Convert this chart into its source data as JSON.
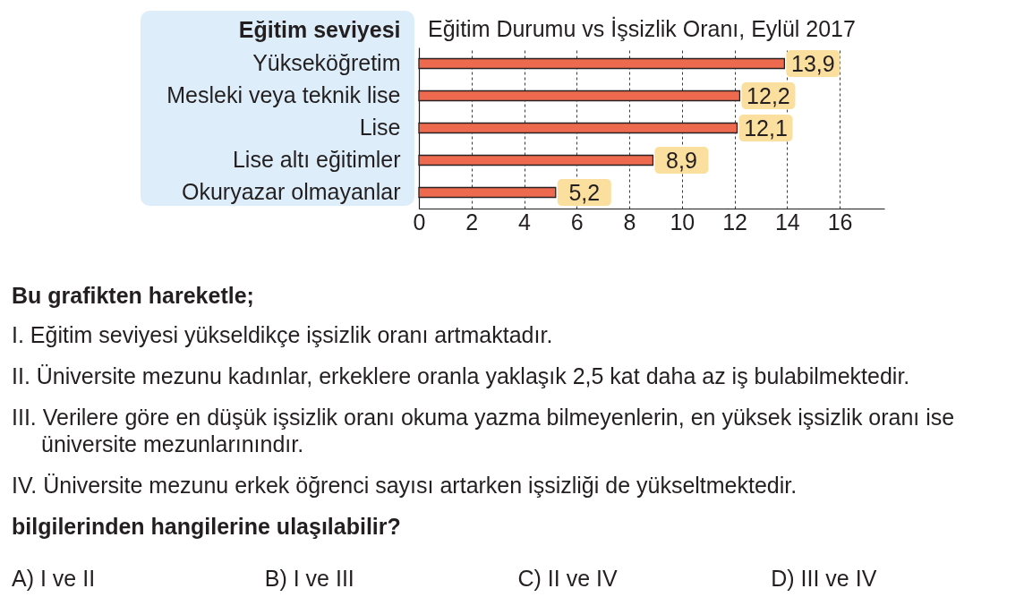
{
  "chart_data": {
    "type": "bar",
    "orientation": "horizontal",
    "title": "Eğitim Durumu vs İşsizlik Oranı, Eylül 2017",
    "ylabel": "Eğitim seviyesi",
    "categories": [
      "Yükseköğretim",
      "Mesleki veya teknik lise",
      "Lise",
      "Lise altı eğitimler",
      "Okuryazar olmayanlar"
    ],
    "values": [
      13.9,
      12.2,
      12.1,
      8.9,
      5.2
    ],
    "color": "#ee6a4f",
    "value_labels": [
      "13,9",
      "12,2",
      "12,1",
      "8,9",
      "5,2"
    ],
    "xlim": [
      0,
      17.7
    ],
    "xticks": [
      0,
      2,
      4,
      6,
      8,
      10,
      12,
      14,
      16
    ],
    "grid": "x",
    "annotations": [
      "Bu grafikten hareketle;",
      "I. Eğitim seviyesi yükseldikçe işsizlik oranı artmaktadır.",
      "II. Üniversite mezunu kadınlar, erkeklere oranla yaklaşık 2,5 kat daha az iş bulabilmektedir.",
      "III. Verilere göre en düşük işsizlik oranı okuma yazma bilmeyenlerin, en yüksek işsizlik oranı ise üniversite mezunlarınındır.",
      "IV. Üniversite mezunu erkek öğrenci sayısı artarken işsizliği de yükseltmektedir.",
      "bilgilerinden hangilerine ulaşılabilir?",
      "A) I ve II",
      "B) I ve III",
      "C) II ve IV",
      "D) III ve IV"
    ]
  }
}
